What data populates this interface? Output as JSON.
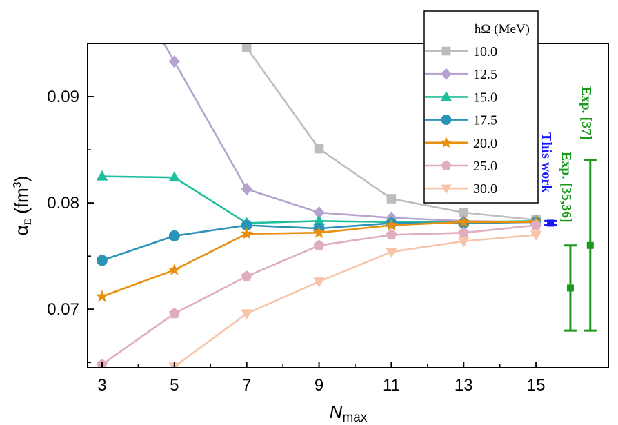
{
  "chart_data": {
    "type": "line",
    "x": [
      3,
      5,
      7,
      9,
      11,
      13,
      15
    ],
    "xlabel_main": "N",
    "xlabel_sub": "max",
    "ylabel_main": "α",
    "ylabel_sub": "E",
    "ylabel_unit_pre": " (fm",
    "ylabel_unit_sup": "3",
    "ylabel_unit_post": ")",
    "xlim": [
      2.6,
      17.0
    ],
    "ylim": [
      0.0645,
      0.095
    ],
    "xticks": [
      "3",
      "5",
      "7",
      "9",
      "11",
      "13",
      "15"
    ],
    "yticks": [
      "0.07",
      "0.08",
      "0.09"
    ],
    "legend": {
      "title": "ħΩ (MeV)",
      "placement": "top-right"
    },
    "series": [
      {
        "name": "10.0",
        "color": "#bdbdbd",
        "marker": "square",
        "values": [
          null,
          null,
          0.0946,
          0.0851,
          0.0804,
          0.0791,
          0.0784
        ]
      },
      {
        "name": "12.5",
        "color": "#b5a2cf",
        "marker": "diamond",
        "values": [
          null,
          0.0933,
          0.0813,
          0.0791,
          0.0786,
          0.0783,
          0.0782
        ]
      },
      {
        "name": "15.0",
        "color": "#1fbf9e",
        "marker": "triangle-up",
        "values": [
          0.0825,
          0.0824,
          0.0781,
          0.0783,
          0.0782,
          0.0782,
          0.0783
        ]
      },
      {
        "name": "17.5",
        "color": "#2a93b8",
        "marker": "circle",
        "values": [
          0.0746,
          0.0769,
          0.0779,
          0.0776,
          0.0781,
          0.0781,
          0.0782
        ]
      },
      {
        "name": "20.0",
        "color": "#e8900e",
        "marker": "star",
        "values": [
          0.0712,
          0.0737,
          0.0771,
          0.0772,
          0.0779,
          0.0782,
          0.0782
        ]
      },
      {
        "name": "25.0",
        "color": "#dfadbe",
        "marker": "pentagon",
        "values": [
          0.0648,
          0.0696,
          0.0731,
          0.076,
          0.077,
          0.0772,
          0.0779
        ]
      },
      {
        "name": "30.0",
        "color": "#f7c4a7",
        "marker": "triangle-down",
        "values": [
          null,
          0.0646,
          0.0696,
          0.0726,
          0.0754,
          0.0764,
          0.077
        ]
      }
    ],
    "annotations": [
      {
        "label": "This work",
        "color": "#1a1aff",
        "x": 15.4,
        "y": 0.0781,
        "yerr_low": 0.0779,
        "yerr_high": 0.0783
      },
      {
        "label": "Exp. [35,36]",
        "color": "#1a9a1a",
        "x": 15.95,
        "y": 0.072,
        "yerr_low": 0.068,
        "yerr_high": 0.076
      },
      {
        "label": "Exp. [37]",
        "color": "#1a9a1a",
        "x": 16.5,
        "y": 0.076,
        "yerr_low": 0.068,
        "yerr_high": 0.084
      }
    ]
  }
}
